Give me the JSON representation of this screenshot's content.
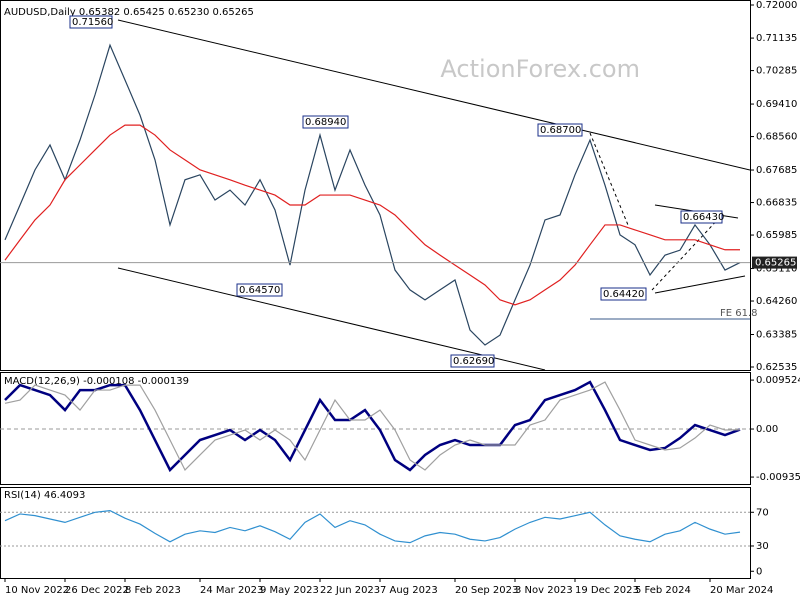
{
  "chart_data": [
    {
      "type": "line",
      "title": "AUDUSD,Daily  0.65382 0.65425 0.65230 0.65265",
      "watermark": "ActionForex.com",
      "categories": [
        "10 Nov 2022",
        null,
        null,
        null,
        "26 Dec 2022",
        null,
        null,
        null,
        "8 Feb 2023",
        null,
        null,
        null,
        null,
        "24 Mar 2023",
        null,
        null,
        null,
        "9 May 2023",
        null,
        null,
        null,
        "22 Jun 2023",
        null,
        null,
        null,
        "7 Aug 2023",
        null,
        null,
        null,
        null,
        "20 Sep 2023",
        null,
        null,
        null,
        "3 Nov 2023",
        null,
        null,
        null,
        "19 Dec 2023",
        null,
        null,
        null,
        "5 Feb 2024",
        null,
        null,
        null,
        null,
        "20 Mar 2024",
        null,
        null
      ],
      "series": [
        {
          "color": "#2a4560",
          "values": [
            0.6586,
            0.6677,
            0.6769,
            0.6834,
            0.6743,
            0.6847,
            0.6965,
            0.7095,
            0.7004,
            0.6912,
            0.6795,
            0.6625,
            0.6743,
            0.6756,
            0.669,
            0.6716,
            0.6677,
            0.6743,
            0.6664,
            0.652,
            0.6716,
            0.686,
            0.6716,
            0.6821,
            0.6729,
            0.6651,
            0.6507,
            0.6455,
            0.6429,
            0.6455,
            0.6481,
            0.635,
            0.6311,
            0.6337,
            0.6429,
            0.652,
            0.6638,
            0.6651,
            0.6756,
            0.6847,
            0.6729,
            0.6599,
            0.6573,
            0.6494,
            0.6546,
            0.6559,
            0.6625,
            0.6573,
            0.6507,
            0.65265
          ]
        },
        {
          "color": "#e02020",
          "values": [
            0.6533,
            0.6586,
            0.6638,
            0.6677,
            0.6743,
            0.6782,
            0.6821,
            0.686,
            0.6886,
            0.6886,
            0.686,
            0.6821,
            0.6795,
            0.6769,
            0.6756,
            0.6743,
            0.6729,
            0.6716,
            0.6703,
            0.6677,
            0.6677,
            0.6703,
            0.6703,
            0.6703,
            0.669,
            0.6677,
            0.6651,
            0.6612,
            0.6573,
            0.6546,
            0.652,
            0.6494,
            0.6468,
            0.6429,
            0.6416,
            0.6429,
            0.6455,
            0.6481,
            0.652,
            0.6573,
            0.6625,
            0.6625,
            0.6612,
            0.6599,
            0.6586,
            0.6586,
            0.6586,
            0.6573,
            0.656,
            0.656
          ]
        }
      ],
      "last_price": 0.65265,
      "annotations": [
        "0.71560",
        "0.68940",
        "0.68700",
        "0.66430",
        "0.64570",
        "0.64420",
        "0.62690",
        "FE 61.8"
      ],
      "ylim": [
        0.62535,
        0.72
      ],
      "yticks": [
        {
          "value": 0.72,
          "label": "0.72000"
        },
        0.71135,
        0.70285,
        {
          "value": 0.6941,
          "label": "0.69410"
        },
        {
          "value": 0.6856,
          "label": "0.68560"
        },
        0.67685,
        0.66835,
        0.65985,
        {
          "value": 0.6511,
          "label": "0.65110"
        },
        {
          "value": 0.6426,
          "label": "0.64260"
        },
        0.63385,
        0.62535
      ]
    },
    {
      "type": "line",
      "title": "MACD(12,26,9) -0.000108 -0.000139",
      "series": [
        {
          "color": "#000080",
          "values": [
            0.00564,
            0.00855,
            0.00758,
            0.00661,
            0.00369,
            0.00758,
            0.00758,
            0.00855,
            0.00855,
            0.00369,
            -0.00214,
            -0.00797,
            -0.00505,
            -0.00214,
            -0.00117,
            -0.00019,
            -0.00214,
            -0.00019,
            -0.00214,
            -0.00603,
            -0.00019,
            0.00564,
            0.00175,
            0.00175,
            0.00369,
            -0.00019,
            -0.00603,
            -0.00797,
            -0.00505,
            -0.00311,
            -0.00214,
            -0.00311,
            -0.00311,
            -0.00311,
            0.00078,
            0.00175,
            0.00564,
            0.00661,
            0.00758,
            0.00914,
            0.00369,
            -0.00214,
            -0.00311,
            -0.00408,
            -0.00369,
            -0.00175,
            0.00078,
            -0.00019,
            -0.00117,
            -0.000108
          ]
        },
        {
          "color": "#a0a0a0",
          "values": [
            0.005,
            0.00564,
            0.00855,
            0.00758,
            0.00661,
            0.00369,
            0.00758,
            0.00758,
            0.00855,
            0.00855,
            0.00369,
            -0.00214,
            -0.00797,
            -0.00505,
            -0.00214,
            -0.00117,
            -0.00019,
            -0.00214,
            -0.00019,
            -0.00214,
            -0.00603,
            -0.00019,
            0.00564,
            0.00175,
            0.00175,
            0.00369,
            -0.00019,
            -0.00603,
            -0.00797,
            -0.00505,
            -0.00311,
            -0.00214,
            -0.00311,
            -0.00311,
            -0.00311,
            0.00078,
            0.00175,
            0.00564,
            0.00661,
            0.00758,
            0.00914,
            0.00369,
            -0.00214,
            -0.00311,
            -0.00408,
            -0.00369,
            -0.00175,
            0.00078,
            -0.00019,
            -0.000139
          ]
        }
      ],
      "ylim": [
        -0.0107,
        0.0111
      ],
      "yticks": [
        0.009524,
        {
          "value": 0,
          "label": "0.00"
        },
        -0.00935
      ]
    },
    {
      "type": "line",
      "title": "RSI(14) 46.4093",
      "series": [
        {
          "color": "#3090d0",
          "values": [
            60,
            68,
            66,
            62,
            58,
            64,
            70,
            72,
            63,
            56,
            45,
            35,
            44,
            48,
            46,
            52,
            48,
            54,
            47,
            38,
            58,
            68,
            52,
            60,
            55,
            44,
            36,
            34,
            42,
            46,
            44,
            38,
            36,
            40,
            50,
            58,
            64,
            62,
            66,
            70,
            55,
            42,
            38,
            35,
            44,
            48,
            58,
            50,
            44,
            46.4093
          ]
        }
      ],
      "ylim": [
        -8,
        100
      ],
      "yticks": [
        70,
        30,
        0
      ]
    }
  ]
}
